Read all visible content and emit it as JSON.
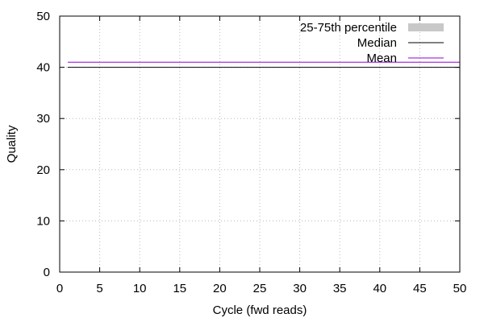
{
  "chart_data": {
    "type": "line",
    "title": "",
    "xlabel": "Cycle (fwd reads)",
    "ylabel": "Quality",
    "xlim": [
      0,
      50
    ],
    "ylim": [
      0,
      50
    ],
    "xticks": [
      0,
      5,
      10,
      15,
      20,
      25,
      30,
      35,
      40,
      45,
      50
    ],
    "yticks": [
      0,
      10,
      20,
      30,
      40,
      50
    ],
    "grid": true,
    "legend_position": "top-right",
    "x_range": [
      1,
      50
    ],
    "series": [
      {
        "name": "25-75th percentile",
        "kind": "band",
        "color": "#c8c8c8",
        "values": [
          40,
          41
        ]
      },
      {
        "name": "Median",
        "kind": "line",
        "color": "#000000",
        "value": 40
      },
      {
        "name": "Mean",
        "kind": "line",
        "color": "#9400d3",
        "value": 41
      }
    ]
  }
}
